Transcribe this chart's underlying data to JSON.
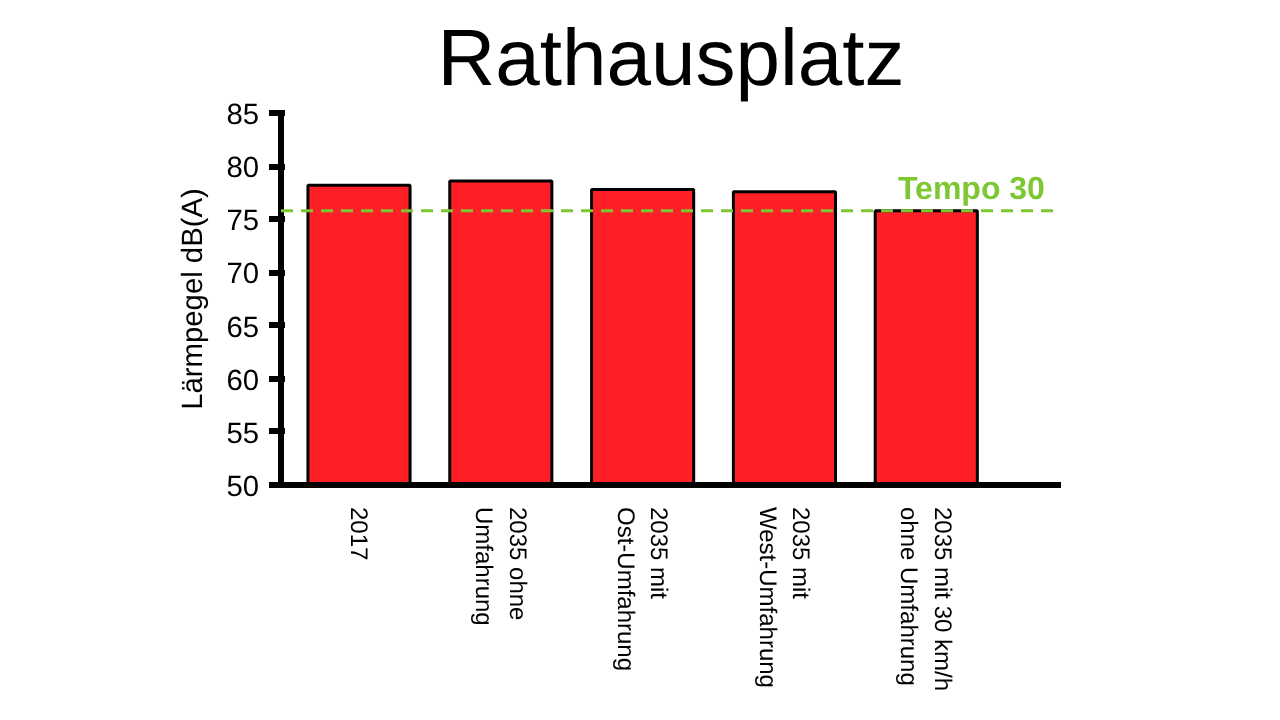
{
  "chart_data": {
    "type": "bar",
    "title": "Rathausplatz",
    "ylabel": "Lärmpegel dB(A)",
    "categories": [
      "2017",
      "2035 ohne\nUmfahrung",
      "2035 mit\nOst-Umfahrung",
      "2035 mit\nWest-Umfahrung",
      "2035 mit 30 km/h\nohne Umfahrung"
    ],
    "values": [
      78.2,
      78.6,
      77.8,
      77.6,
      75.8
    ],
    "color": "#ff1f26",
    "ylim": [
      50,
      85
    ],
    "yticks": [
      50,
      55,
      60,
      65,
      70,
      75,
      80,
      85
    ],
    "grid": false,
    "ref_lines": [
      {
        "axis": "y",
        "value": 75.8,
        "label": "Tempo 30",
        "color": "#7dc832",
        "line_style": "dashed"
      }
    ]
  }
}
